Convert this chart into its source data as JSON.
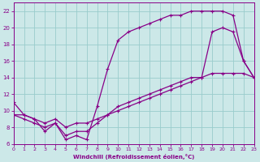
{
  "xlabel": "Windchill (Refroidissement éolien,°C)",
  "bg_color": "#cce8e8",
  "line_color": "#880088",
  "grid_color": "#99cccc",
  "line1_x": [
    0,
    1,
    2,
    3,
    4,
    5,
    6,
    7,
    8,
    9,
    10,
    11,
    12,
    13,
    14,
    15,
    16,
    17,
    18,
    19,
    20,
    21,
    22,
    23
  ],
  "line1_y": [
    11,
    9.5,
    9,
    7.5,
    8.5,
    6.5,
    7,
    6.5,
    10.5,
    15,
    18.5,
    19.5,
    20,
    20.5,
    21,
    21.5,
    21.5,
    22,
    22,
    22,
    22,
    21.5,
    16,
    14
  ],
  "line2_x": [
    0,
    1,
    2,
    3,
    4,
    5,
    6,
    7,
    8,
    9,
    10,
    11,
    12,
    13,
    14,
    15,
    16,
    17,
    18,
    19,
    20,
    21,
    22,
    23
  ],
  "line2_y": [
    9.5,
    9,
    8.5,
    8,
    8.5,
    7,
    7.5,
    7.5,
    8.5,
    9.5,
    10.5,
    11,
    11.5,
    12,
    12.5,
    13,
    13.5,
    14,
    14,
    19.5,
    20,
    19.5,
    16,
    14
  ],
  "line3_x": [
    0,
    1,
    2,
    3,
    4,
    5,
    6,
    7,
    8,
    9,
    10,
    11,
    12,
    13,
    14,
    15,
    16,
    17,
    18,
    19,
    20,
    21,
    22,
    23
  ],
  "line3_y": [
    9.5,
    9.5,
    9,
    8.5,
    9,
    8,
    8.5,
    8.5,
    9,
    9.5,
    10,
    10.5,
    11,
    11.5,
    12,
    12.5,
    13,
    13.5,
    14,
    14.5,
    14.5,
    14.5,
    14.5,
    14
  ],
  "xlim": [
    0,
    23
  ],
  "ylim": [
    6,
    23
  ],
  "yticks": [
    6,
    8,
    10,
    12,
    14,
    16,
    18,
    20,
    22
  ],
  "xticks": [
    0,
    1,
    2,
    3,
    4,
    5,
    6,
    7,
    8,
    9,
    10,
    11,
    12,
    13,
    14,
    15,
    16,
    17,
    18,
    19,
    20,
    21,
    22,
    23
  ]
}
